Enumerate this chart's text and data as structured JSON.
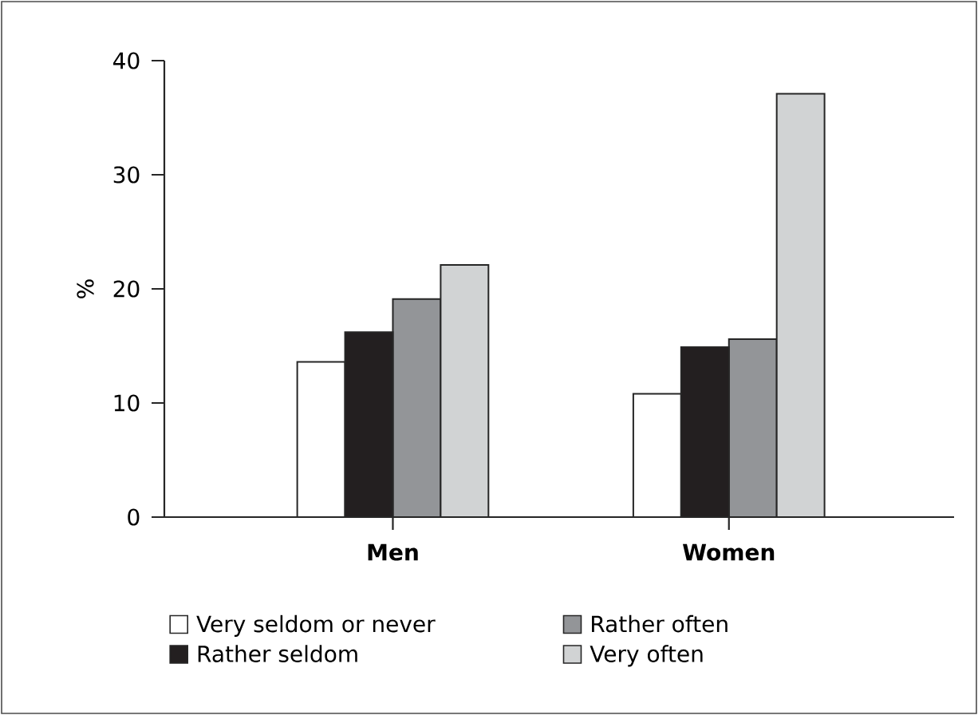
{
  "chart_data": {
    "type": "bar",
    "ylabel": "%",
    "categories": [
      "Men",
      "Women"
    ],
    "series": [
      {
        "name": "Very seldom or never",
        "color": "#ffffff",
        "values": [
          13.6,
          10.8
        ]
      },
      {
        "name": "Rather seldom",
        "color": "#231f20",
        "values": [
          16.2,
          14.9
        ]
      },
      {
        "name": "Rather often",
        "color": "#939598",
        "values": [
          19.1,
          15.6
        ]
      },
      {
        "name": "Very often",
        "color": "#d1d3d4",
        "values": [
          22.1,
          37.1
        ]
      }
    ],
    "ylim": [
      0,
      40
    ],
    "yticks": [
      0,
      10,
      20,
      30,
      40
    ],
    "legend": "bottom",
    "grid": false
  }
}
